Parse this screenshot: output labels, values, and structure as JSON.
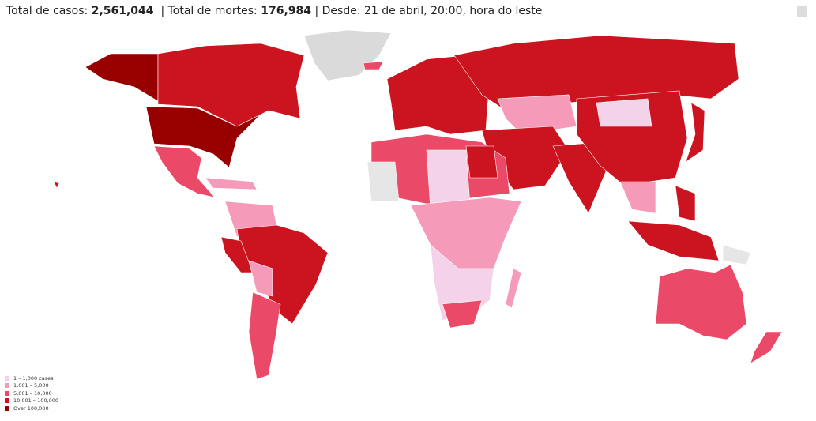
{
  "header": {
    "cases_label": "Total de casos:",
    "cases": "2,561,044",
    "sep1": "|",
    "deaths_label": "Total de mortes:",
    "deaths": "176,984",
    "sep2": "|",
    "since": "Desde: 21 de abril, 20:00, hora do leste"
  },
  "legend": {
    "items": [
      {
        "label": "1 – 1,000 cases",
        "color": "#f3d2ea"
      },
      {
        "label": "1,001 – 5,000",
        "color": "#f59ab9"
      },
      {
        "label": "5,001 – 10,000",
        "color": "#ea4a67"
      },
      {
        "label": "10,001 – 100,000",
        "color": "#cc1420"
      },
      {
        "label": "Over 100,000",
        "color": "#980000"
      }
    ]
  }
}
